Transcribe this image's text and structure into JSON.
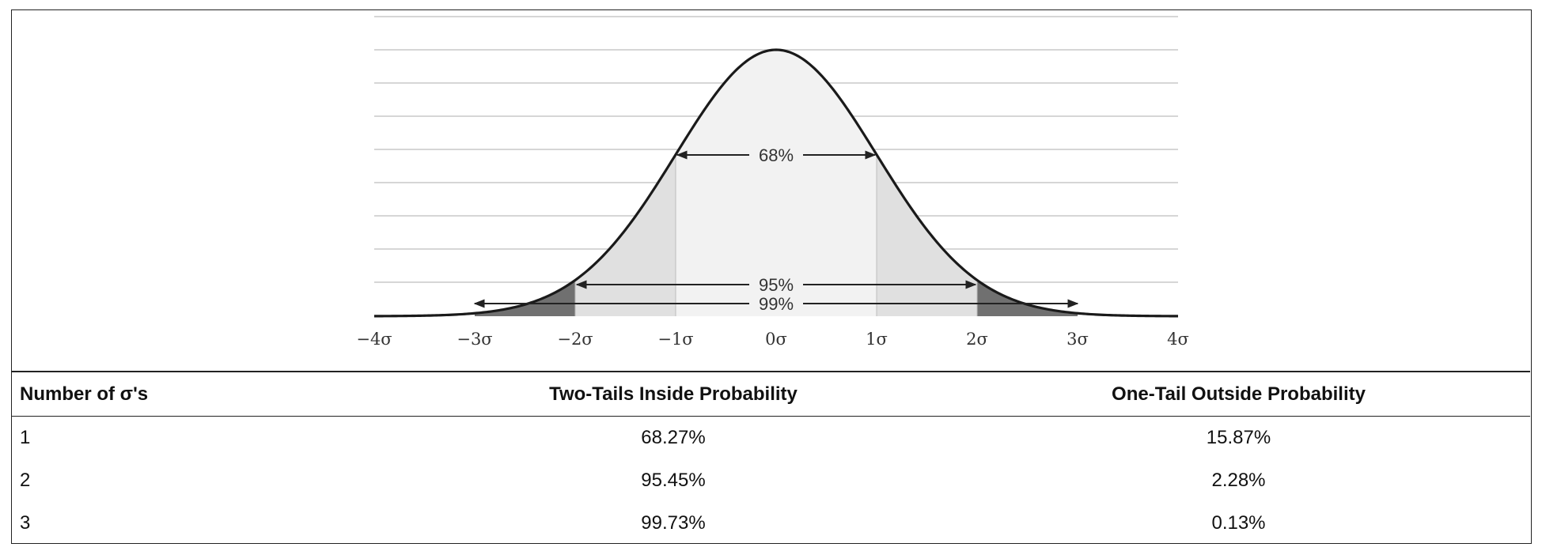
{
  "caption": "",
  "chart_data": {
    "type": "area",
    "title": "",
    "xlabel": "",
    "ylabel": "",
    "xlim": [
      -4,
      4
    ],
    "x_ticks": [
      "−4σ",
      "−3σ",
      "−2σ",
      "−1σ",
      "0σ",
      "1σ",
      "2σ",
      "3σ",
      "4σ"
    ],
    "curve": "normal distribution (mean 0, standard deviation σ)",
    "grid": "horizontal lines",
    "ranges": [
      {
        "label": "68%",
        "from": -1,
        "to": 1
      },
      {
        "label": "95%",
        "from": -2,
        "to": 2
      },
      {
        "label": "99%",
        "from": -3,
        "to": 3
      }
    ],
    "shading": [
      {
        "from": -1,
        "to": 1,
        "color": "#f2f2f2"
      },
      {
        "from": -2,
        "to": -1,
        "color": "#e0e0e0"
      },
      {
        "from": 1,
        "to": 2,
        "color": "#e0e0e0"
      },
      {
        "from": -3,
        "to": -2,
        "color": "#707070"
      },
      {
        "from": 2,
        "to": 3,
        "color": "#707070"
      }
    ]
  },
  "table": {
    "headers": [
      "Number of σ's",
      "Two-Tails Inside Probability",
      "One-Tail Outside Probability"
    ],
    "rows": [
      [
        "1",
        "68.27%",
        "15.87%"
      ],
      [
        "2",
        "95.45%",
        "2.28%"
      ],
      [
        "3",
        "99.73%",
        "0.13%"
      ]
    ]
  }
}
